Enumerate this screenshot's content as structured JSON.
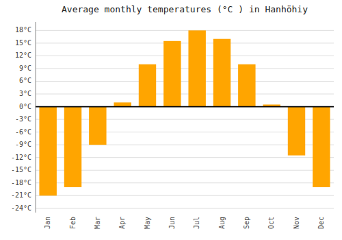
{
  "chart_data": {
    "type": "bar",
    "title": "Average monthly temperatures (°C ) in Hanhöhiy",
    "categories": [
      "Jan",
      "Feb",
      "Mar",
      "Apr",
      "May",
      "Jun",
      "Jul",
      "Aug",
      "Sep",
      "Oct",
      "Nov",
      "Dec"
    ],
    "values": [
      -21,
      -19,
      -9,
      1,
      10,
      15.5,
      18,
      16,
      10,
      0.5,
      -11.5,
      -19
    ],
    "color": "#FFA500",
    "ylim": [
      -25,
      20
    ],
    "yticks": [
      {
        "value": -24,
        "label": "-24°C"
      },
      {
        "value": -21,
        "label": "-21°C"
      },
      {
        "value": -18,
        "label": "-18°C"
      },
      {
        "value": -15,
        "label": "-15°C"
      },
      {
        "value": -12,
        "label": "-12°C"
      },
      {
        "value": -9,
        "label": "-9°C"
      },
      {
        "value": -6,
        "label": "-6°C"
      },
      {
        "value": -3,
        "label": "-3°C"
      },
      {
        "value": 0,
        "label": "0°C"
      },
      {
        "value": 3,
        "label": "3°C"
      },
      {
        "value": 6,
        "label": "6°C"
      },
      {
        "value": 9,
        "label": "9°C"
      },
      {
        "value": 12,
        "label": "12°C"
      },
      {
        "value": 15,
        "label": "15°C"
      },
      {
        "value": 18,
        "label": "18°C"
      }
    ],
    "grid": true
  }
}
